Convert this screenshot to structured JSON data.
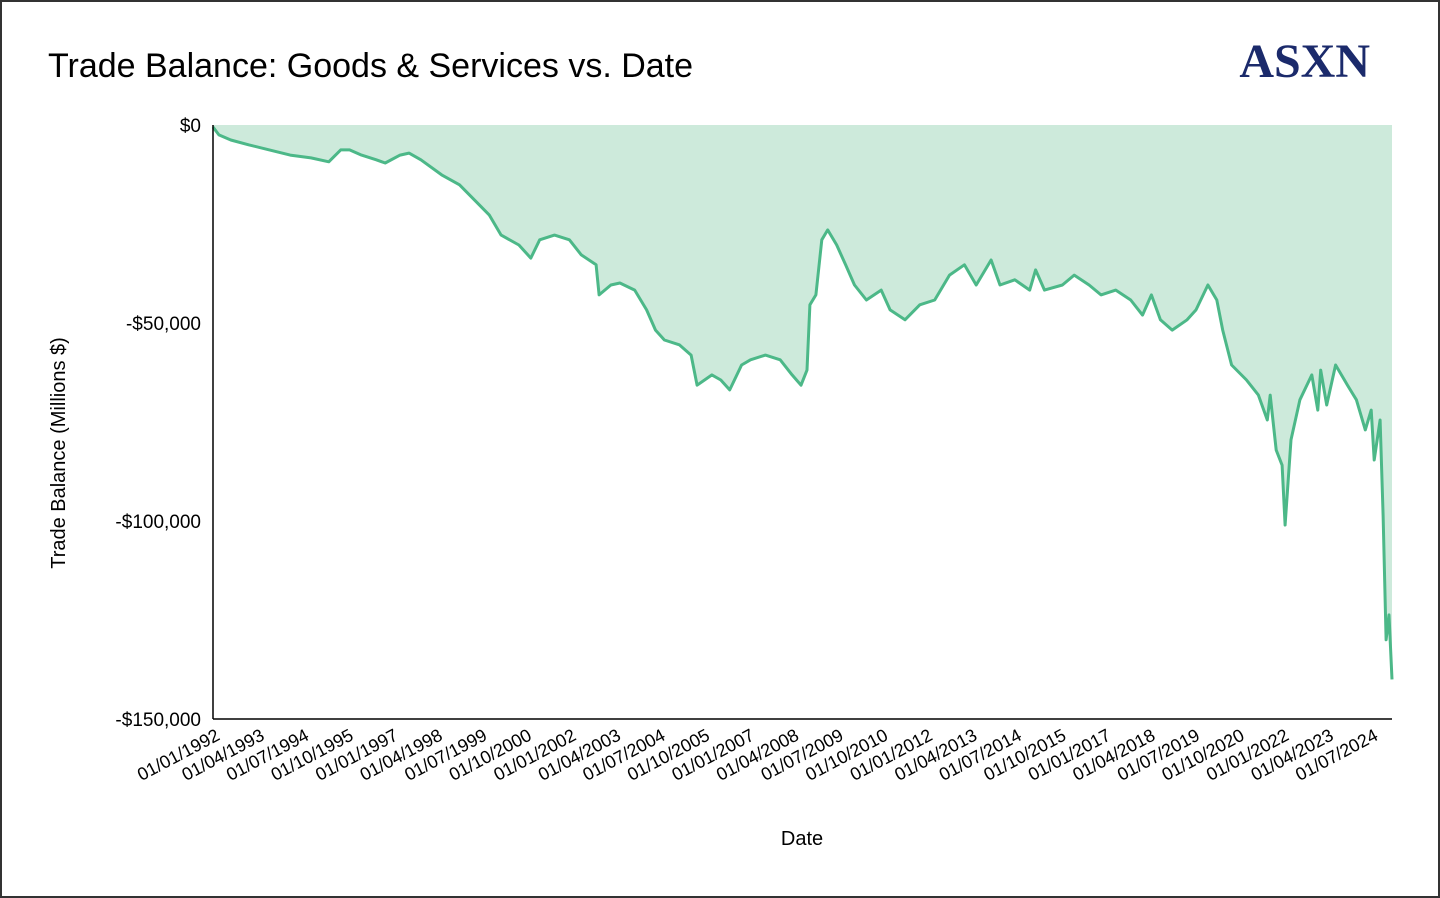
{
  "chart_data": {
    "type": "area",
    "title": "Trade Balance: Goods & Services vs. Date",
    "xlabel": "Date",
    "ylabel": "Trade Balance (Millions $)",
    "ylim": [
      -150000,
      0
    ],
    "xlim": [
      "1992-01",
      "2025-02"
    ],
    "grid": false,
    "legend": "none",
    "yticks": [
      0,
      -50000,
      -100000,
      -150000
    ],
    "ytick_labels": [
      "$0",
      "-$50,000",
      "-$100,000",
      "-$150,000"
    ],
    "xtick_dates": [
      "1992-01",
      "1993-04",
      "1994-07",
      "1995-10",
      "1997-01",
      "1998-04",
      "1999-07",
      "2000-10",
      "2002-01",
      "2003-04",
      "2004-07",
      "2005-10",
      "2007-01",
      "2008-04",
      "2009-07",
      "2010-10",
      "2012-01",
      "2013-04",
      "2014-07",
      "2015-10",
      "2017-01",
      "2018-04",
      "2019-07",
      "2020-10",
      "2022-01",
      "2023-04",
      "2024-07"
    ],
    "xtick_labels": [
      "01/01/1992",
      "01/04/1993",
      "01/07/1994",
      "01/10/1995",
      "01/01/1997",
      "01/04/1998",
      "01/07/1999",
      "01/10/2000",
      "01/01/2002",
      "01/04/2003",
      "01/07/2004",
      "01/10/2005",
      "01/01/2007",
      "01/04/2008",
      "01/07/2009",
      "01/10/2010",
      "01/01/2012",
      "01/04/2013",
      "01/07/2014",
      "01/10/2015",
      "01/01/2017",
      "01/04/2018",
      "01/07/2019",
      "01/10/2020",
      "01/01/2022",
      "01/04/2023",
      "01/07/2024"
    ],
    "colors": {
      "line": "#4cb888",
      "fill": "#cdeadb",
      "axis": "#000000"
    },
    "points": [
      [
        "1992-01",
        -500
      ],
      [
        "1992-03",
        -2500
      ],
      [
        "1992-07",
        -3800
      ],
      [
        "1993-01",
        -5000
      ],
      [
        "1993-08",
        -6300
      ],
      [
        "1994-03",
        -7600
      ],
      [
        "1994-10",
        -8300
      ],
      [
        "1995-04",
        -9300
      ],
      [
        "1995-08",
        -6300
      ],
      [
        "1995-11",
        -6300
      ],
      [
        "1996-03",
        -7600
      ],
      [
        "1996-08",
        -8800
      ],
      [
        "1996-11",
        -9600
      ],
      [
        "1997-04",
        -7600
      ],
      [
        "1997-07",
        -7100
      ],
      [
        "1997-11",
        -8800
      ],
      [
        "1998-06",
        -12600
      ],
      [
        "1998-12",
        -15100
      ],
      [
        "1999-05",
        -18900
      ],
      [
        "1999-10",
        -22700
      ],
      [
        "2000-02",
        -27800
      ],
      [
        "2000-08",
        -30300
      ],
      [
        "2000-12",
        -33600
      ],
      [
        "2001-03",
        -29000
      ],
      [
        "2001-08",
        -27800
      ],
      [
        "2002-01",
        -29000
      ],
      [
        "2002-05",
        -32800
      ],
      [
        "2002-10",
        -35300
      ],
      [
        "2002-11",
        -42900
      ],
      [
        "2003-03",
        -40400
      ],
      [
        "2003-06",
        -39900
      ],
      [
        "2003-11",
        -41700
      ],
      [
        "2004-03",
        -46700
      ],
      [
        "2004-06",
        -51800
      ],
      [
        "2004-09",
        -54300
      ],
      [
        "2005-02",
        -55500
      ],
      [
        "2005-06",
        -58100
      ],
      [
        "2005-08",
        -65700
      ],
      [
        "2006-01",
        -63100
      ],
      [
        "2006-04",
        -64400
      ],
      [
        "2006-07",
        -66900
      ],
      [
        "2006-11",
        -60600
      ],
      [
        "2007-02",
        -59300
      ],
      [
        "2007-07",
        -58100
      ],
      [
        "2007-12",
        -59300
      ],
      [
        "2008-04",
        -63100
      ],
      [
        "2008-07",
        -65700
      ],
      [
        "2008-09",
        -61900
      ],
      [
        "2008-10",
        -45400
      ],
      [
        "2008-12",
        -42900
      ],
      [
        "2009-02",
        -29000
      ],
      [
        "2009-04",
        -26500
      ],
      [
        "2009-07",
        -30300
      ],
      [
        "2009-10",
        -35300
      ],
      [
        "2010-01",
        -40400
      ],
      [
        "2010-05",
        -44200
      ],
      [
        "2010-10",
        -41700
      ],
      [
        "2011-01",
        -46700
      ],
      [
        "2011-06",
        -49200
      ],
      [
        "2011-11",
        -45400
      ],
      [
        "2012-04",
        -44200
      ],
      [
        "2012-09",
        -37900
      ],
      [
        "2013-02",
        -35300
      ],
      [
        "2013-06",
        -40400
      ],
      [
        "2013-11",
        -34100
      ],
      [
        "2014-02",
        -40400
      ],
      [
        "2014-07",
        -39100
      ],
      [
        "2014-12",
        -41700
      ],
      [
        "2015-02",
        -36600
      ],
      [
        "2015-05",
        -41700
      ],
      [
        "2015-11",
        -40400
      ],
      [
        "2016-03",
        -37900
      ],
      [
        "2016-08",
        -40400
      ],
      [
        "2016-12",
        -42900
      ],
      [
        "2017-05",
        -41700
      ],
      [
        "2017-10",
        -44200
      ],
      [
        "2018-02",
        -48000
      ],
      [
        "2018-05",
        -42900
      ],
      [
        "2018-08",
        -49200
      ],
      [
        "2018-12",
        -51800
      ],
      [
        "2019-05",
        -49200
      ],
      [
        "2019-08",
        -46700
      ],
      [
        "2019-12",
        -40400
      ],
      [
        "2020-03",
        -44200
      ],
      [
        "2020-05",
        -51800
      ],
      [
        "2020-08",
        -60600
      ],
      [
        "2021-01",
        -64400
      ],
      [
        "2021-05",
        -68200
      ],
      [
        "2021-08",
        -74500
      ],
      [
        "2021-09",
        -68200
      ],
      [
        "2021-11",
        -82100
      ],
      [
        "2022-01",
        -85900
      ],
      [
        "2022-02",
        -101000
      ],
      [
        "2022-04",
        -79500
      ],
      [
        "2022-07",
        -69400
      ],
      [
        "2022-11",
        -63100
      ],
      [
        "2023-01",
        -72000
      ],
      [
        "2023-02",
        -61900
      ],
      [
        "2023-04",
        -70700
      ],
      [
        "2023-07",
        -60600
      ],
      [
        "2023-11",
        -65700
      ],
      [
        "2024-02",
        -69400
      ],
      [
        "2024-05",
        -77000
      ],
      [
        "2024-07",
        -72000
      ],
      [
        "2024-08",
        -84600
      ],
      [
        "2024-10",
        -74500
      ],
      [
        "2024-11",
        -98500
      ],
      [
        "2024-12",
        -130000
      ],
      [
        "2025-01",
        -123700
      ],
      [
        "2025-02",
        -140000
      ]
    ]
  },
  "logo": {
    "text": "ASXN",
    "color": "#1b2a6b"
  }
}
